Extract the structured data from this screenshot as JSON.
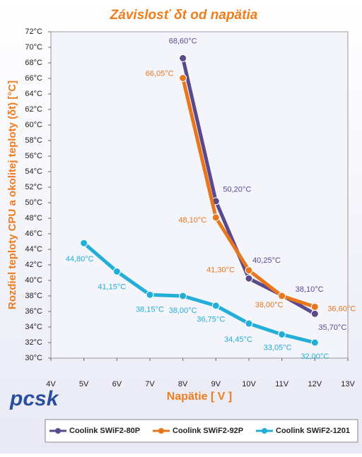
{
  "chart_data": {
    "type": "line",
    "title": "Závislosť δt od napätia",
    "x_label": "Napätie [ V ]",
    "y_label": "Rozdiel teploty CPU a okolitej teploty (δt) [°C]",
    "logo": "pcsk",
    "xlim": [
      4,
      13
    ],
    "xticks": [
      {
        "value": 4,
        "label": "4V"
      },
      {
        "value": 5,
        "label": "5V"
      },
      {
        "value": 6,
        "label": "6V"
      },
      {
        "value": 7,
        "label": "7V"
      },
      {
        "value": 8,
        "label": "8V"
      },
      {
        "value": 9,
        "label": "9V"
      },
      {
        "value": 10,
        "label": "10V"
      },
      {
        "value": 11,
        "label": "11V"
      },
      {
        "value": 12,
        "label": "12V"
      },
      {
        "value": 13,
        "label": "13V"
      }
    ],
    "ylim": [
      30,
      72
    ],
    "yticks": [
      {
        "value": 30,
        "label": "30°C"
      },
      {
        "value": 32,
        "label": "32°C"
      },
      {
        "value": 34,
        "label": "34°C"
      },
      {
        "value": 36,
        "label": "36°C"
      },
      {
        "value": 38,
        "label": "38°C"
      },
      {
        "value": 40,
        "label": "40°C"
      },
      {
        "value": 42,
        "label": "42°C"
      },
      {
        "value": 44,
        "label": "44°C"
      },
      {
        "value": 46,
        "label": "46°C"
      },
      {
        "value": 48,
        "label": "48°C"
      },
      {
        "value": 50,
        "label": "50°C"
      },
      {
        "value": 52,
        "label": "52°C"
      },
      {
        "value": 54,
        "label": "54°C"
      },
      {
        "value": 56,
        "label": "56°C"
      },
      {
        "value": 58,
        "label": "58°C"
      },
      {
        "value": 60,
        "label": "60°C"
      },
      {
        "value": 62,
        "label": "62°C"
      },
      {
        "value": 64,
        "label": "64°C"
      },
      {
        "value": 66,
        "label": "66°C"
      },
      {
        "value": 68,
        "label": "68°C"
      },
      {
        "value": 70,
        "label": "70°C"
      },
      {
        "value": 72,
        "label": "72°C"
      }
    ],
    "legend_position": "bottom",
    "series": [
      {
        "name": "Coolink SWiF2-80P",
        "color": "#5a4a8c",
        "x": [
          8,
          9,
          10,
          11,
          12
        ],
        "values": [
          68.6,
          50.2,
          40.25,
          38.1,
          35.7
        ],
        "value_labels": [
          "68,60°C",
          "50,20°C",
          "40,25°C",
          "38,10°C",
          "35,70°C"
        ]
      },
      {
        "name": "Coolink SWiF2-92P",
        "color": "#e8761c",
        "x": [
          8,
          9,
          10,
          11,
          12
        ],
        "values": [
          66.05,
          48.1,
          41.3,
          38.0,
          36.6
        ],
        "value_labels": [
          "66,05°C",
          "48,10°C",
          "41,30°C",
          "38,00°C",
          "36,60°C"
        ]
      },
      {
        "name": "Coolink SWiF2-1201",
        "color": "#22aed6",
        "x": [
          5,
          6,
          7,
          8,
          9,
          10,
          11,
          12
        ],
        "values": [
          44.8,
          41.15,
          38.15,
          38.0,
          36.75,
          34.45,
          33.05,
          32.0
        ],
        "value_labels": [
          "44,80°C",
          "41,15°C",
          "38,15°C",
          "38,00°C",
          "36,75°C",
          "34,45°C",
          "33,05°C",
          "32,00°C"
        ]
      }
    ]
  }
}
